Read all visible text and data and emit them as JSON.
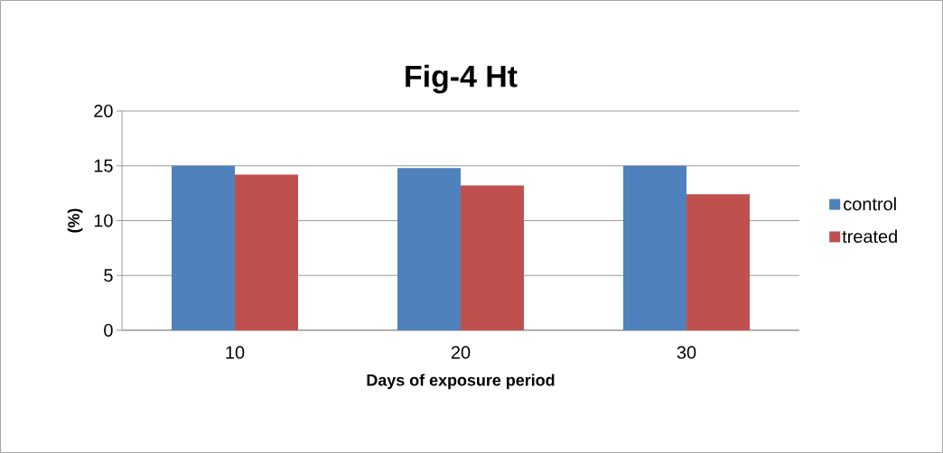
{
  "chart_data": {
    "type": "bar",
    "title": "Fig-4 Ht",
    "xlabel": "Days of exposure period",
    "ylabel": "(%)",
    "categories": [
      "10",
      "20",
      "30"
    ],
    "series": [
      {
        "name": "control",
        "color": "#4f81bd",
        "values": [
          15.0,
          14.8,
          15.0
        ]
      },
      {
        "name": "treated",
        "color": "#c0504d",
        "values": [
          14.2,
          13.2,
          12.4
        ]
      }
    ],
    "ylim": [
      0,
      20
    ],
    "yticks": [
      0,
      5,
      10,
      15,
      20
    ],
    "grid": "y",
    "legend": "right"
  }
}
